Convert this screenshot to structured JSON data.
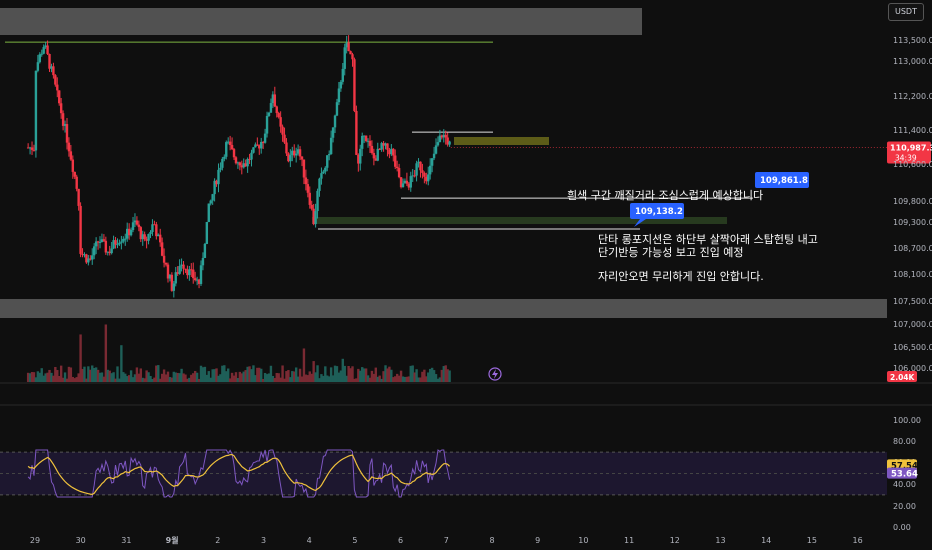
{
  "currency_label": "USDT",
  "colors": {
    "up": "#2aa198",
    "down": "#f23645",
    "volume_up": "#1e5f58",
    "volume_down": "#7a2a33",
    "rsi_line": "#7e57c2",
    "rsi_ma": "#f0c23c",
    "gray_zone": "#5d5d5d",
    "yellow_zone": "#6b6a1a",
    "green_zone": "#2b4222",
    "blue_tag": "#2962ff",
    "red_tag": "#f23645"
  },
  "chart_data": {
    "type": "candlestick",
    "price_axis": {
      "ticks": [
        113500,
        113000,
        112200,
        111400,
        110600,
        109800,
        109300,
        108700,
        108100,
        107500,
        107000,
        106500,
        106000
      ],
      "tick_labels": [
        "113,500.0",
        "113,000.0",
        "112,200.0",
        "111,400.0",
        "110,600.0",
        "109,800.0",
        "109,300.0",
        "108,700.0",
        "108,100.0",
        "107,500.0",
        "107,000.0",
        "106,500.0",
        "106,000.0"
      ]
    },
    "date_axis": [
      "29",
      "30",
      "31",
      "9월",
      "2",
      "3",
      "4",
      "5",
      "6",
      "7",
      "8",
      "9",
      "10",
      "11",
      "12",
      "13",
      "14",
      "15",
      "16"
    ],
    "price_path": [
      [
        29.0,
        112800
      ],
      [
        29.2,
        113400
      ],
      [
        29.4,
        112600
      ],
      [
        29.6,
        111700
      ],
      [
        29.8,
        110700
      ],
      [
        29.95,
        109900
      ],
      [
        30.0,
        108600
      ],
      [
        30.2,
        108400
      ],
      [
        30.4,
        108900
      ],
      [
        30.6,
        108600
      ],
      [
        30.8,
        108900
      ],
      [
        31.0,
        109000
      ],
      [
        31.2,
        109300
      ],
      [
        31.4,
        108800
      ],
      [
        31.6,
        109300
      ],
      [
        31.8,
        108500
      ],
      [
        32.0,
        107800
      ],
      [
        32.2,
        108400
      ],
      [
        32.4,
        108100
      ],
      [
        32.6,
        107900
      ],
      [
        32.8,
        109600
      ],
      [
        33.0,
        110400
      ],
      [
        33.2,
        111100
      ],
      [
        33.4,
        110700
      ],
      [
        33.6,
        110600
      ],
      [
        33.8,
        110900
      ],
      [
        34.0,
        111200
      ],
      [
        34.2,
        112300
      ],
      [
        34.35,
        111500
      ],
      [
        34.55,
        110700
      ],
      [
        34.75,
        111000
      ],
      [
        35.0,
        109900
      ],
      [
        35.1,
        109300
      ],
      [
        35.2,
        110100
      ],
      [
        35.4,
        110700
      ],
      [
        35.6,
        111900
      ],
      [
        35.8,
        113400
      ],
      [
        35.95,
        113000
      ],
      [
        36.05,
        110400
      ],
      [
        36.2,
        111400
      ],
      [
        36.4,
        110700
      ],
      [
        36.6,
        111000
      ],
      [
        36.8,
        110900
      ],
      [
        37.0,
        110100
      ],
      [
        37.2,
        110200
      ],
      [
        37.4,
        110600
      ],
      [
        37.6,
        110300
      ],
      [
        37.75,
        110900
      ],
      [
        37.9,
        111300
      ],
      [
        38.0,
        111200
      ],
      [
        38.1,
        110988
      ]
    ],
    "last_price": {
      "value": 110987.3,
      "label": "110,987.3",
      "countdown": "34:39"
    },
    "price_tags": [
      {
        "label": "109,861.8",
        "value": 109861.8
      },
      {
        "label": "109,138.2",
        "value": 109138.2
      }
    ],
    "horizontal_lines": [
      {
        "value": 113450,
        "color": "green"
      },
      {
        "value": 111350,
        "color": "white"
      },
      {
        "value": 109861.8,
        "color": "white"
      },
      {
        "value": 109138.2,
        "color": "white"
      }
    ],
    "zones": [
      {
        "name": "resistance-band",
        "from": 113700,
        "to": 114000,
        "color": "gray"
      },
      {
        "name": "support-band",
        "from": 107200,
        "to": 107400,
        "color": "gray"
      },
      {
        "name": "target-zone",
        "from": 111200,
        "to": 111350,
        "color": "yellow"
      },
      {
        "name": "entry-zone",
        "from": 109260,
        "to": 109340,
        "color": "green"
      }
    ],
    "volume": {
      "last_label": "2.04K"
    },
    "rsi": {
      "ticks": [
        100,
        80,
        60,
        40,
        20,
        0
      ],
      "tick_labels": [
        "100.00",
        "80.00",
        "60.00",
        "40.00",
        "20.00",
        "0.00"
      ],
      "band_upper": 70,
      "band_lower": 30,
      "rsi_value": 53.64,
      "rsi_label": "53.64",
      "ma_value": 57.54,
      "ma_label": "57.54"
    }
  },
  "annotations": {
    "note1": "흰색 구간 깨질거라 조심스럽게 예상합니다",
    "note2_line1": "단타 롱포지션은 하단부 살짝아래 스탑헌팅 내고",
    "note2_line2": "단기반등 가능성 보고 진입 예정",
    "note3": "자리안오면 무리하게 진입 안합니다."
  }
}
